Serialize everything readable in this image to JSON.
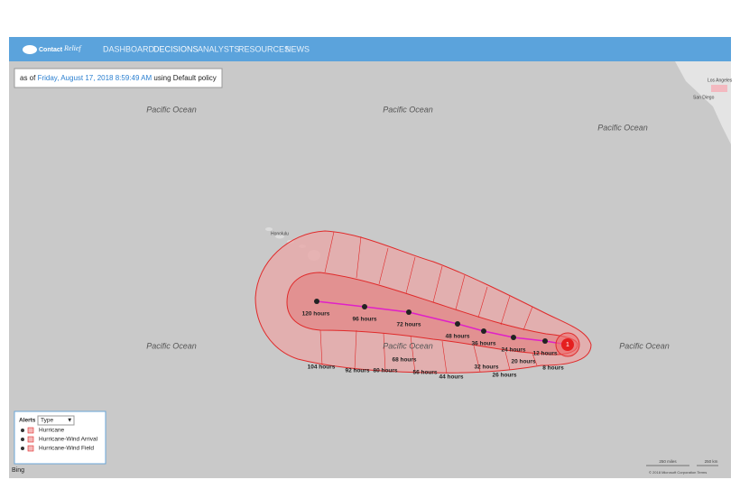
{
  "header": {
    "brand_bold": "Contact",
    "brand_script": "Relief",
    "nav": [
      "DASHBOARD",
      "DECISIONS",
      "ANALYSTS",
      "RESOURCES",
      "NEWS"
    ]
  },
  "status": {
    "prefix": "as of",
    "date": "Friday, August 17, 2018 8:59:49 AM",
    "suffix": "using Default policy"
  },
  "map": {
    "ocean_labels": [
      "Pacific Ocean",
      "Pacific Ocean",
      "Pacific Ocean",
      "Pacific Ocean",
      "Pacific Ocean",
      "Pacific Ocean"
    ],
    "city_labels": [
      "Honolulu",
      "Los Angeles",
      "San Diego"
    ],
    "hour_labels": [
      "120 hours",
      "96 hours",
      "72 hours",
      "48 hours",
      "36 hours",
      "24 hours",
      "12 hours",
      "8 hours",
      "20 hours",
      "26 hours",
      "32 hours",
      "44 hours",
      "56 hours",
      "68 hours",
      "80 hours",
      "92 hours",
      "104 hours"
    ],
    "storm_marker": "1"
  },
  "legend": {
    "title": "Alerts",
    "filter": "Type",
    "items": [
      "Hurricane",
      "Hurricane-Wind Arrival",
      "Hurricane-Wind Field"
    ]
  },
  "footer": {
    "provider": "Bing",
    "scale_miles": "250 miles",
    "scale_km": "250 km",
    "copyright": "© 2018 Microsoft Corporation  Terms"
  }
}
